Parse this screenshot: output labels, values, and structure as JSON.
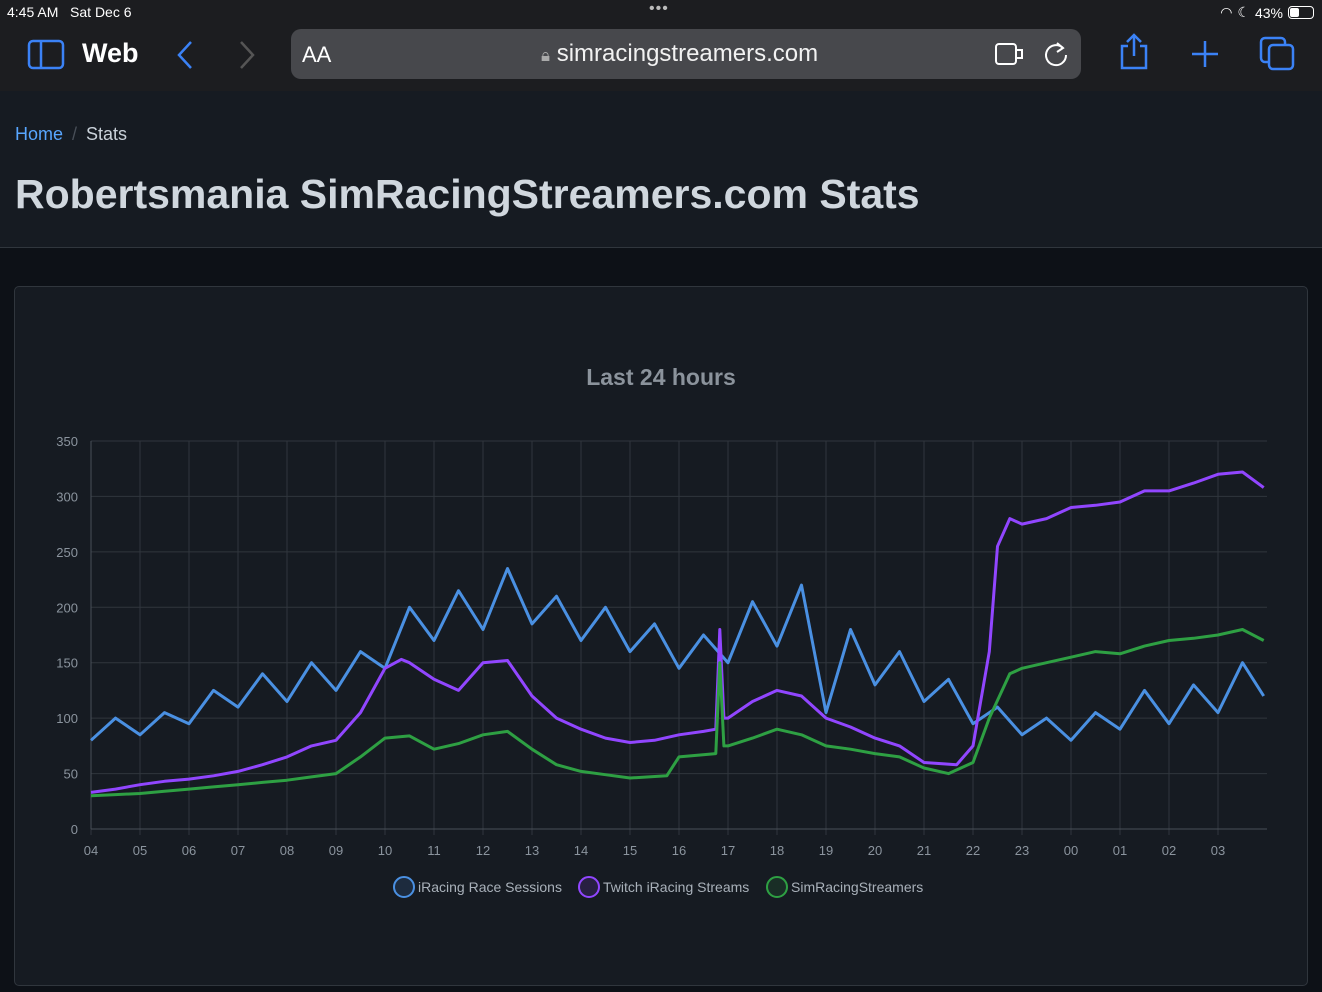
{
  "status_bar": {
    "time": "4:45 AM",
    "date": "Sat Dec 6",
    "battery": "43%",
    "battery_level": 0.43
  },
  "browser": {
    "title": "Web",
    "url": "simracingstreamers.com",
    "aa_label": "AA",
    "accent": "#3b82f6"
  },
  "breadcrumb": {
    "home": "Home",
    "current": "Stats"
  },
  "page_title": "Robertsmania SimRacingStreamers.com Stats",
  "chart_data": {
    "type": "line",
    "title": "Last 24 hours",
    "ylim": [
      0,
      350
    ],
    "yticks": [
      0,
      50,
      100,
      150,
      200,
      250,
      300,
      350
    ],
    "xticks": [
      "04",
      "05",
      "06",
      "07",
      "08",
      "09",
      "10",
      "11",
      "12",
      "13",
      "14",
      "15",
      "16",
      "17",
      "18",
      "19",
      "20",
      "21",
      "22",
      "23",
      "00",
      "01",
      "02",
      "03"
    ],
    "grid": true,
    "legend_position": "bottom",
    "series": [
      {
        "name": "iRacing Race Sessions",
        "color": "#4a90e2",
        "points": [
          [
            "04:00",
            80
          ],
          [
            "04:30",
            100
          ],
          [
            "05:00",
            85
          ],
          [
            "05:30",
            105
          ],
          [
            "06:00",
            95
          ],
          [
            "06:30",
            125
          ],
          [
            "07:00",
            110
          ],
          [
            "07:30",
            140
          ],
          [
            "08:00",
            115
          ],
          [
            "08:30",
            150
          ],
          [
            "09:00",
            125
          ],
          [
            "09:30",
            160
          ],
          [
            "10:00",
            145
          ],
          [
            "10:30",
            200
          ],
          [
            "11:00",
            170
          ],
          [
            "11:30",
            215
          ],
          [
            "12:00",
            180
          ],
          [
            "12:30",
            235
          ],
          [
            "13:00",
            185
          ],
          [
            "13:30",
            210
          ],
          [
            "14:00",
            170
          ],
          [
            "14:30",
            200
          ],
          [
            "15:00",
            160
          ],
          [
            "15:30",
            185
          ],
          [
            "16:00",
            145
          ],
          [
            "16:30",
            175
          ],
          [
            "17:00",
            150
          ],
          [
            "17:30",
            205
          ],
          [
            "18:00",
            165
          ],
          [
            "18:30",
            220
          ],
          [
            "19:00",
            105
          ],
          [
            "19:30",
            180
          ],
          [
            "20:00",
            130
          ],
          [
            "20:30",
            160
          ],
          [
            "21:00",
            115
          ],
          [
            "21:30",
            135
          ],
          [
            "22:00",
            95
          ],
          [
            "22:30",
            110
          ],
          [
            "23:00",
            85
          ],
          [
            "23:30",
            100
          ],
          [
            "00:00",
            80
          ],
          [
            "00:30",
            105
          ],
          [
            "01:00",
            90
          ],
          [
            "01:30",
            125
          ],
          [
            "02:00",
            95
          ],
          [
            "02:30",
            130
          ],
          [
            "03:00",
            105
          ],
          [
            "03:30",
            150
          ],
          [
            "03:56",
            120
          ]
        ]
      },
      {
        "name": "Twitch iRacing Streams",
        "color": "#9146ff",
        "points": [
          [
            "04:00",
            33
          ],
          [
            "04:30",
            36
          ],
          [
            "05:00",
            40
          ],
          [
            "05:30",
            43
          ],
          [
            "06:00",
            45
          ],
          [
            "06:30",
            48
          ],
          [
            "07:00",
            52
          ],
          [
            "07:30",
            58
          ],
          [
            "08:00",
            65
          ],
          [
            "08:30",
            75
          ],
          [
            "09:00",
            80
          ],
          [
            "09:30",
            105
          ],
          [
            "10:00",
            145
          ],
          [
            "10:20",
            153
          ],
          [
            "10:30",
            150
          ],
          [
            "11:00",
            135
          ],
          [
            "11:30",
            125
          ],
          [
            "12:00",
            150
          ],
          [
            "12:30",
            152
          ],
          [
            "13:00",
            120
          ],
          [
            "13:30",
            100
          ],
          [
            "14:00",
            90
          ],
          [
            "14:30",
            82
          ],
          [
            "15:00",
            78
          ],
          [
            "15:30",
            80
          ],
          [
            "16:00",
            85
          ],
          [
            "16:30",
            88
          ],
          [
            "16:45",
            90
          ],
          [
            "16:50",
            180
          ],
          [
            "16:55",
            100
          ],
          [
            "17:00",
            100
          ],
          [
            "17:30",
            115
          ],
          [
            "18:00",
            125
          ],
          [
            "18:30",
            120
          ],
          [
            "19:00",
            100
          ],
          [
            "19:30",
            92
          ],
          [
            "20:00",
            82
          ],
          [
            "20:30",
            75
          ],
          [
            "21:00",
            60
          ],
          [
            "21:40",
            58
          ],
          [
            "22:00",
            75
          ],
          [
            "22:20",
            160
          ],
          [
            "22:30",
            255
          ],
          [
            "22:45",
            280
          ],
          [
            "23:00",
            275
          ],
          [
            "23:30",
            280
          ],
          [
            "00:00",
            290
          ],
          [
            "00:30",
            292
          ],
          [
            "01:00",
            295
          ],
          [
            "01:30",
            305
          ],
          [
            "02:00",
            305
          ],
          [
            "02:30",
            312
          ],
          [
            "03:00",
            320
          ],
          [
            "03:30",
            322
          ],
          [
            "03:56",
            308
          ]
        ]
      },
      {
        "name": "SimRacingStreamers",
        "color": "#2ea043",
        "points": [
          [
            "04:00",
            30
          ],
          [
            "04:30",
            31
          ],
          [
            "05:00",
            32
          ],
          [
            "05:30",
            34
          ],
          [
            "06:00",
            36
          ],
          [
            "06:30",
            38
          ],
          [
            "07:00",
            40
          ],
          [
            "07:30",
            42
          ],
          [
            "08:00",
            44
          ],
          [
            "08:30",
            47
          ],
          [
            "09:00",
            50
          ],
          [
            "09:30",
            65
          ],
          [
            "10:00",
            82
          ],
          [
            "10:30",
            84
          ],
          [
            "11:00",
            72
          ],
          [
            "11:30",
            77
          ],
          [
            "12:00",
            85
          ],
          [
            "12:30",
            88
          ],
          [
            "13:00",
            72
          ],
          [
            "13:30",
            58
          ],
          [
            "14:00",
            52
          ],
          [
            "14:30",
            49
          ],
          [
            "15:00",
            46
          ],
          [
            "15:45",
            48
          ],
          [
            "16:00",
            65
          ],
          [
            "16:45",
            68
          ],
          [
            "16:50",
            150
          ],
          [
            "16:55",
            75
          ],
          [
            "17:00",
            75
          ],
          [
            "17:30",
            82
          ],
          [
            "18:00",
            90
          ],
          [
            "18:30",
            85
          ],
          [
            "19:00",
            75
          ],
          [
            "19:30",
            72
          ],
          [
            "20:00",
            68
          ],
          [
            "20:30",
            65
          ],
          [
            "21:00",
            55
          ],
          [
            "21:30",
            50
          ],
          [
            "22:00",
            60
          ],
          [
            "22:20",
            100
          ],
          [
            "22:45",
            140
          ],
          [
            "23:00",
            145
          ],
          [
            "23:30",
            150
          ],
          [
            "00:00",
            155
          ],
          [
            "00:30",
            160
          ],
          [
            "01:00",
            158
          ],
          [
            "01:30",
            165
          ],
          [
            "02:00",
            170
          ],
          [
            "02:30",
            172
          ],
          [
            "03:00",
            175
          ],
          [
            "03:30",
            180
          ],
          [
            "03:56",
            170
          ]
        ]
      }
    ]
  }
}
